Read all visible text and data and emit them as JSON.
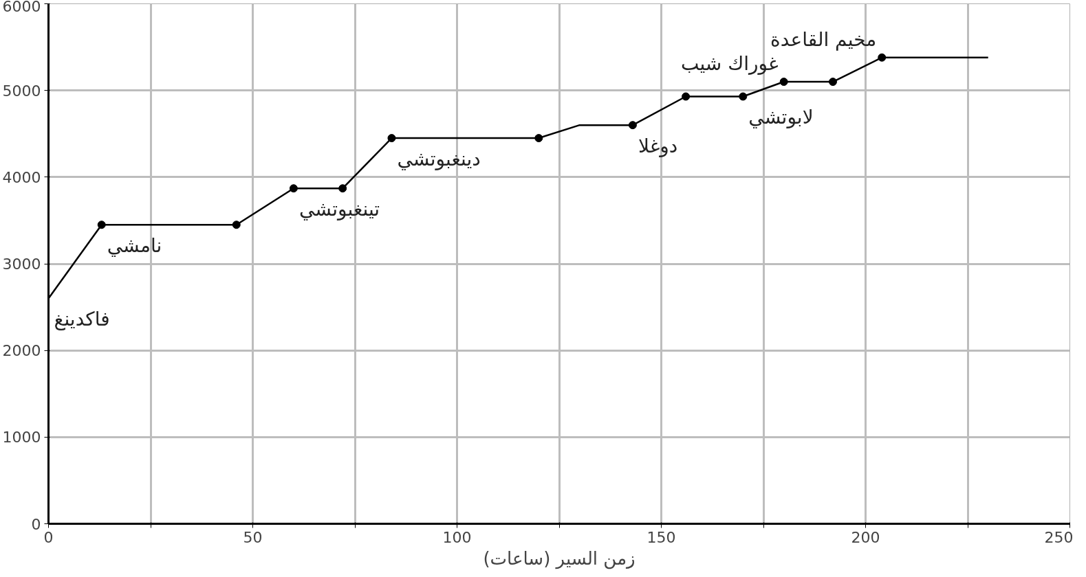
{
  "chart_data": {
    "type": "line",
    "xlabel": "زمن السير (ساعات)",
    "xlim": [
      0,
      250
    ],
    "ylim": [
      0,
      6000
    ],
    "xticks": [
      0,
      {
        "value": 25,
        "label": null
      },
      50,
      {
        "value": 75,
        "label": null
      },
      100,
      {
        "value": 125,
        "label": null
      },
      150,
      {
        "value": 175,
        "label": null
      },
      200,
      {
        "value": 225,
        "label": null
      },
      250
    ],
    "yticks": [
      0,
      1000,
      2000,
      3000,
      4000,
      5000,
      6000
    ],
    "grid": true,
    "series": [
      {
        "color": "#000000",
        "marker": "none",
        "x": [
          0,
          13,
          46,
          60,
          72,
          84,
          120,
          130,
          143,
          156,
          170,
          180,
          192,
          204,
          230
        ],
        "values": [
          2600,
          3450,
          3450,
          3870,
          3870,
          4450,
          4450,
          4600,
          4600,
          4930,
          4930,
          5100,
          5100,
          5380,
          5380
        ]
      },
      {
        "type": "scatter",
        "color": "#000000",
        "marker": "circle",
        "x": [
          13,
          46,
          60,
          72,
          84,
          120,
          143,
          156,
          170,
          180,
          192,
          204
        ],
        "values": [
          3450,
          3450,
          3870,
          3870,
          4450,
          4450,
          4600,
          4930,
          4930,
          5100,
          5100,
          5380
        ]
      }
    ],
    "annotations": [
      {
        "text": "نامشي",
        "x": 13,
        "y": 3450
      },
      {
        "text": "فاكدينغ",
        "x": 0,
        "y": 2600
      },
      {
        "text": "تينغبوتشي",
        "x": 60,
        "y": 3870
      },
      {
        "text": "دينغبوتشي",
        "x": 84,
        "y": 4450
      },
      {
        "text": "دوغلا",
        "x": 143,
        "y": 4600
      },
      {
        "text": "لابوتشي",
        "x": 170,
        "y": 4930
      },
      {
        "text": "غوراك شيب",
        "x": 180,
        "y": 5100
      },
      {
        "text": "مخيم القاعدة",
        "x": 204,
        "y": 5380
      }
    ]
  }
}
